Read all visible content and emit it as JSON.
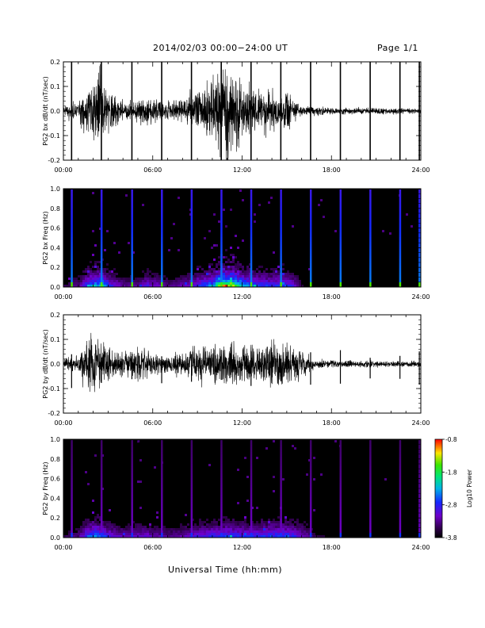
{
  "header": {
    "title": "2014/02/03  00:00−24:00 UT",
    "page": "Page 1/1"
  },
  "xlabel": "Universal Time (hh:mm)",
  "chart_data": [
    {
      "type": "line",
      "ylabel": "PG2 bx dB/dt (nT/sec)",
      "xlim": [
        0,
        24
      ],
      "ylim": [
        -0.2,
        0.2
      ],
      "x_ticks": [
        "00:00",
        "06:00",
        "12:00",
        "18:00",
        "24:00"
      ],
      "y_ticks": [
        "-0.2",
        "-0.1",
        "0.0",
        "0.1",
        "0.2"
      ],
      "spike_times": [
        0.55,
        2.55,
        4.6,
        6.6,
        8.6,
        10.6,
        12.6,
        14.6,
        16.6,
        18.6,
        20.6,
        22.6,
        23.9
      ],
      "activity_envelope": [
        [
          0,
          0.012
        ],
        [
          1,
          0.02
        ],
        [
          1.5,
          0.045
        ],
        [
          2,
          0.06
        ],
        [
          2.5,
          0.07
        ],
        [
          3,
          0.04
        ],
        [
          4,
          0.02
        ],
        [
          5,
          0.02
        ],
        [
          5.5,
          0.035
        ],
        [
          6,
          0.03
        ],
        [
          7,
          0.018
        ],
        [
          8,
          0.025
        ],
        [
          9,
          0.04
        ],
        [
          10,
          0.06
        ],
        [
          10.5,
          0.09
        ],
        [
          11,
          0.11
        ],
        [
          11.5,
          0.09
        ],
        [
          12,
          0.06
        ],
        [
          13,
          0.045
        ],
        [
          14,
          0.04
        ],
        [
          15,
          0.045
        ],
        [
          15.5,
          0.03
        ],
        [
          16,
          0.01
        ],
        [
          18,
          0.008
        ],
        [
          22,
          0.006
        ],
        [
          24,
          0.006
        ]
      ]
    },
    {
      "type": "heatmap",
      "ylabel": "PG2 bx Freq (Hz)",
      "colorbar_label": "Log10 Power",
      "colorbar_ticks": [
        "-0.8",
        "-1.8",
        "-2.8",
        "-3.8"
      ],
      "clim": [
        -3.8,
        -0.8
      ],
      "xlim": [
        0,
        24
      ],
      "ylim": [
        0,
        1.0
      ],
      "x_ticks": [
        "00:00",
        "06:00",
        "12:00",
        "18:00",
        "24:00"
      ],
      "y_ticks": [
        "0.0",
        "0.2",
        "0.4",
        "0.6",
        "0.8",
        "1.0"
      ],
      "spike_times": [
        0.55,
        2.55,
        4.6,
        6.6,
        8.6,
        10.6,
        12.6,
        14.6,
        16.6,
        18.6,
        20.6,
        22.6,
        23.9
      ]
    },
    {
      "type": "line",
      "ylabel": "PG2 by dB/dt (nT/sec)",
      "xlim": [
        0,
        24
      ],
      "ylim": [
        -0.2,
        0.2
      ],
      "x_ticks": [
        "00:00",
        "06:00",
        "12:00",
        "18:00",
        "24:00"
      ],
      "y_ticks": [
        "-0.2",
        "-0.1",
        "0.0",
        "0.1",
        "0.2"
      ],
      "spike_times": [
        0.55,
        2.55,
        4.6,
        6.6,
        8.6,
        10.6,
        12.6,
        14.6,
        16.6,
        18.6,
        20.6,
        22.6,
        23.9
      ],
      "activity_envelope": [
        [
          0,
          0.012
        ],
        [
          1,
          0.02
        ],
        [
          1.5,
          0.045
        ],
        [
          2,
          0.06
        ],
        [
          2.5,
          0.05
        ],
        [
          3,
          0.035
        ],
        [
          4,
          0.025
        ],
        [
          5,
          0.03
        ],
        [
          5.5,
          0.03
        ],
        [
          6,
          0.025
        ],
        [
          7,
          0.02
        ],
        [
          8,
          0.025
        ],
        [
          9,
          0.035
        ],
        [
          10,
          0.04
        ],
        [
          11,
          0.045
        ],
        [
          12,
          0.04
        ],
        [
          13,
          0.04
        ],
        [
          14,
          0.045
        ],
        [
          15,
          0.045
        ],
        [
          16,
          0.03
        ],
        [
          17,
          0.01
        ],
        [
          18,
          0.008
        ],
        [
          22,
          0.006
        ],
        [
          24,
          0.006
        ]
      ]
    },
    {
      "type": "heatmap",
      "ylabel": "PG2 by Freq (Hz)",
      "colorbar_label": "Log10 Power",
      "colorbar_ticks": [
        "-0.8",
        "-1.8",
        "-2.8",
        "-3.8"
      ],
      "clim": [
        -3.8,
        -0.8
      ],
      "xlim": [
        0,
        24
      ],
      "ylim": [
        0,
        1.0
      ],
      "x_ticks": [
        "00:00",
        "06:00",
        "12:00",
        "18:00",
        "24:00"
      ],
      "y_ticks": [
        "0.0",
        "0.2",
        "0.4",
        "0.6",
        "0.8",
        "1.0"
      ],
      "spike_times": [
        0.55,
        2.55,
        4.6,
        6.6,
        8.6,
        10.6,
        12.6,
        14.6,
        16.6,
        18.6,
        20.6,
        22.6,
        23.9
      ]
    }
  ]
}
